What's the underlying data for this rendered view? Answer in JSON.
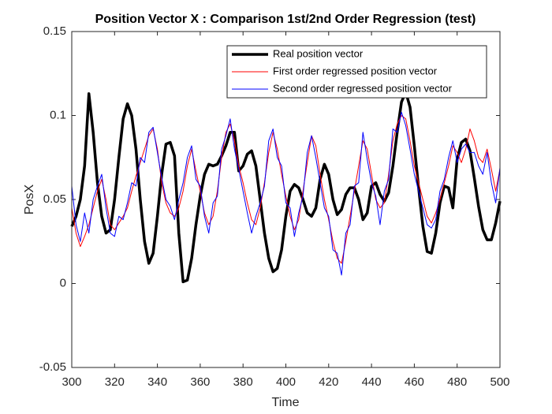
{
  "chart_data": {
    "type": "line",
    "title": "Position Vector X : Comparison 1st/2nd Order Regression (test)",
    "x_label": "Time",
    "y_label": "PosX",
    "x": [
      300,
      302,
      304,
      306,
      308,
      310,
      312,
      314,
      316,
      318,
      320,
      322,
      324,
      326,
      328,
      330,
      332,
      334,
      336,
      338,
      340,
      342,
      344,
      346,
      348,
      350,
      352,
      354,
      356,
      358,
      360,
      362,
      364,
      366,
      368,
      370,
      372,
      374,
      376,
      378,
      380,
      382,
      384,
      386,
      388,
      390,
      392,
      394,
      396,
      398,
      400,
      402,
      404,
      406,
      408,
      410,
      412,
      414,
      416,
      418,
      420,
      422,
      424,
      426,
      428,
      430,
      432,
      434,
      436,
      438,
      440,
      442,
      444,
      446,
      448,
      450,
      452,
      454,
      456,
      458,
      460,
      462,
      464,
      466,
      468,
      470,
      472,
      474,
      476,
      478,
      480,
      482,
      484,
      486,
      488,
      490,
      492,
      494,
      496,
      498,
      500
    ],
    "series": [
      {
        "name": "Real position vector",
        "color": "#000000",
        "width": 3.5,
        "values": [
          0.034,
          0.04,
          0.05,
          0.07,
          0.113,
          0.09,
          0.06,
          0.04,
          0.03,
          0.032,
          0.05,
          0.075,
          0.098,
          0.107,
          0.1,
          0.08,
          0.05,
          0.025,
          0.012,
          0.018,
          0.04,
          0.065,
          0.083,
          0.084,
          0.076,
          0.03,
          0.001,
          0.002,
          0.015,
          0.035,
          0.052,
          0.065,
          0.071,
          0.07,
          0.071,
          0.076,
          0.082,
          0.09,
          0.09,
          0.067,
          0.07,
          0.077,
          0.079,
          0.07,
          0.05,
          0.03,
          0.015,
          0.007,
          0.009,
          0.02,
          0.04,
          0.055,
          0.059,
          0.057,
          0.05,
          0.042,
          0.04,
          0.045,
          0.062,
          0.071,
          0.065,
          0.05,
          0.041,
          0.044,
          0.053,
          0.057,
          0.057,
          0.05,
          0.038,
          0.042,
          0.058,
          0.06,
          0.053,
          0.049,
          0.054,
          0.07,
          0.09,
          0.108,
          0.114,
          0.105,
          0.082,
          0.057,
          0.034,
          0.019,
          0.018,
          0.03,
          0.048,
          0.058,
          0.057,
          0.045,
          0.074,
          0.084,
          0.086,
          0.079,
          0.063,
          0.046,
          0.032,
          0.026,
          0.026,
          0.036,
          0.049
        ]
      },
      {
        "name": "First order regressed position vector",
        "color": "#ff0000",
        "width": 1,
        "values": [
          0.045,
          0.03,
          0.022,
          0.028,
          0.035,
          0.045,
          0.055,
          0.062,
          0.05,
          0.035,
          0.032,
          0.036,
          0.04,
          0.045,
          0.055,
          0.064,
          0.072,
          0.08,
          0.088,
          0.092,
          0.08,
          0.06,
          0.048,
          0.042,
          0.04,
          0.045,
          0.055,
          0.07,
          0.08,
          0.067,
          0.055,
          0.042,
          0.035,
          0.04,
          0.055,
          0.075,
          0.09,
          0.095,
          0.085,
          0.07,
          0.06,
          0.048,
          0.038,
          0.035,
          0.045,
          0.06,
          0.078,
          0.09,
          0.08,
          0.065,
          0.052,
          0.04,
          0.032,
          0.038,
          0.055,
          0.072,
          0.088,
          0.082,
          0.065,
          0.05,
          0.038,
          0.025,
          0.015,
          0.012,
          0.025,
          0.04,
          0.055,
          0.07,
          0.085,
          0.08,
          0.065,
          0.05,
          0.045,
          0.048,
          0.065,
          0.085,
          0.095,
          0.1,
          0.098,
          0.085,
          0.07,
          0.06,
          0.05,
          0.04,
          0.036,
          0.042,
          0.05,
          0.06,
          0.07,
          0.082,
          0.078,
          0.072,
          0.08,
          0.092,
          0.085,
          0.075,
          0.072,
          0.08,
          0.068,
          0.055,
          0.068
        ]
      },
      {
        "name": "Second order regressed position vector",
        "color": "#0000ff",
        "width": 1,
        "values": [
          0.058,
          0.035,
          0.025,
          0.042,
          0.03,
          0.05,
          0.058,
          0.065,
          0.045,
          0.03,
          0.028,
          0.04,
          0.038,
          0.048,
          0.06,
          0.058,
          0.075,
          0.072,
          0.09,
          0.093,
          0.078,
          0.063,
          0.05,
          0.046,
          0.038,
          0.05,
          0.06,
          0.075,
          0.082,
          0.062,
          0.058,
          0.04,
          0.03,
          0.048,
          0.052,
          0.08,
          0.088,
          0.098,
          0.08,
          0.068,
          0.055,
          0.042,
          0.03,
          0.04,
          0.048,
          0.058,
          0.085,
          0.092,
          0.075,
          0.07,
          0.048,
          0.045,
          0.028,
          0.042,
          0.052,
          0.078,
          0.088,
          0.075,
          0.06,
          0.045,
          0.04,
          0.02,
          0.018,
          0.005,
          0.03,
          0.035,
          0.058,
          0.06,
          0.09,
          0.074,
          0.06,
          0.052,
          0.035,
          0.055,
          0.062,
          0.092,
          0.09,
          0.102,
          0.094,
          0.08,
          0.065,
          0.055,
          0.045,
          0.035,
          0.033,
          0.038,
          0.055,
          0.062,
          0.075,
          0.085,
          0.072,
          0.08,
          0.083,
          0.078,
          0.078,
          0.07,
          0.065,
          0.078,
          0.06,
          0.048,
          0.069
        ]
      }
    ],
    "xlim": [
      300,
      500
    ],
    "xticks": [
      300,
      320,
      340,
      360,
      380,
      400,
      420,
      440,
      460,
      480,
      500
    ],
    "ylim": [
      -0.05,
      0.15
    ],
    "yticks": [
      -0.05,
      0,
      0.05,
      0.1,
      0.15
    ],
    "legend": "top-right"
  }
}
